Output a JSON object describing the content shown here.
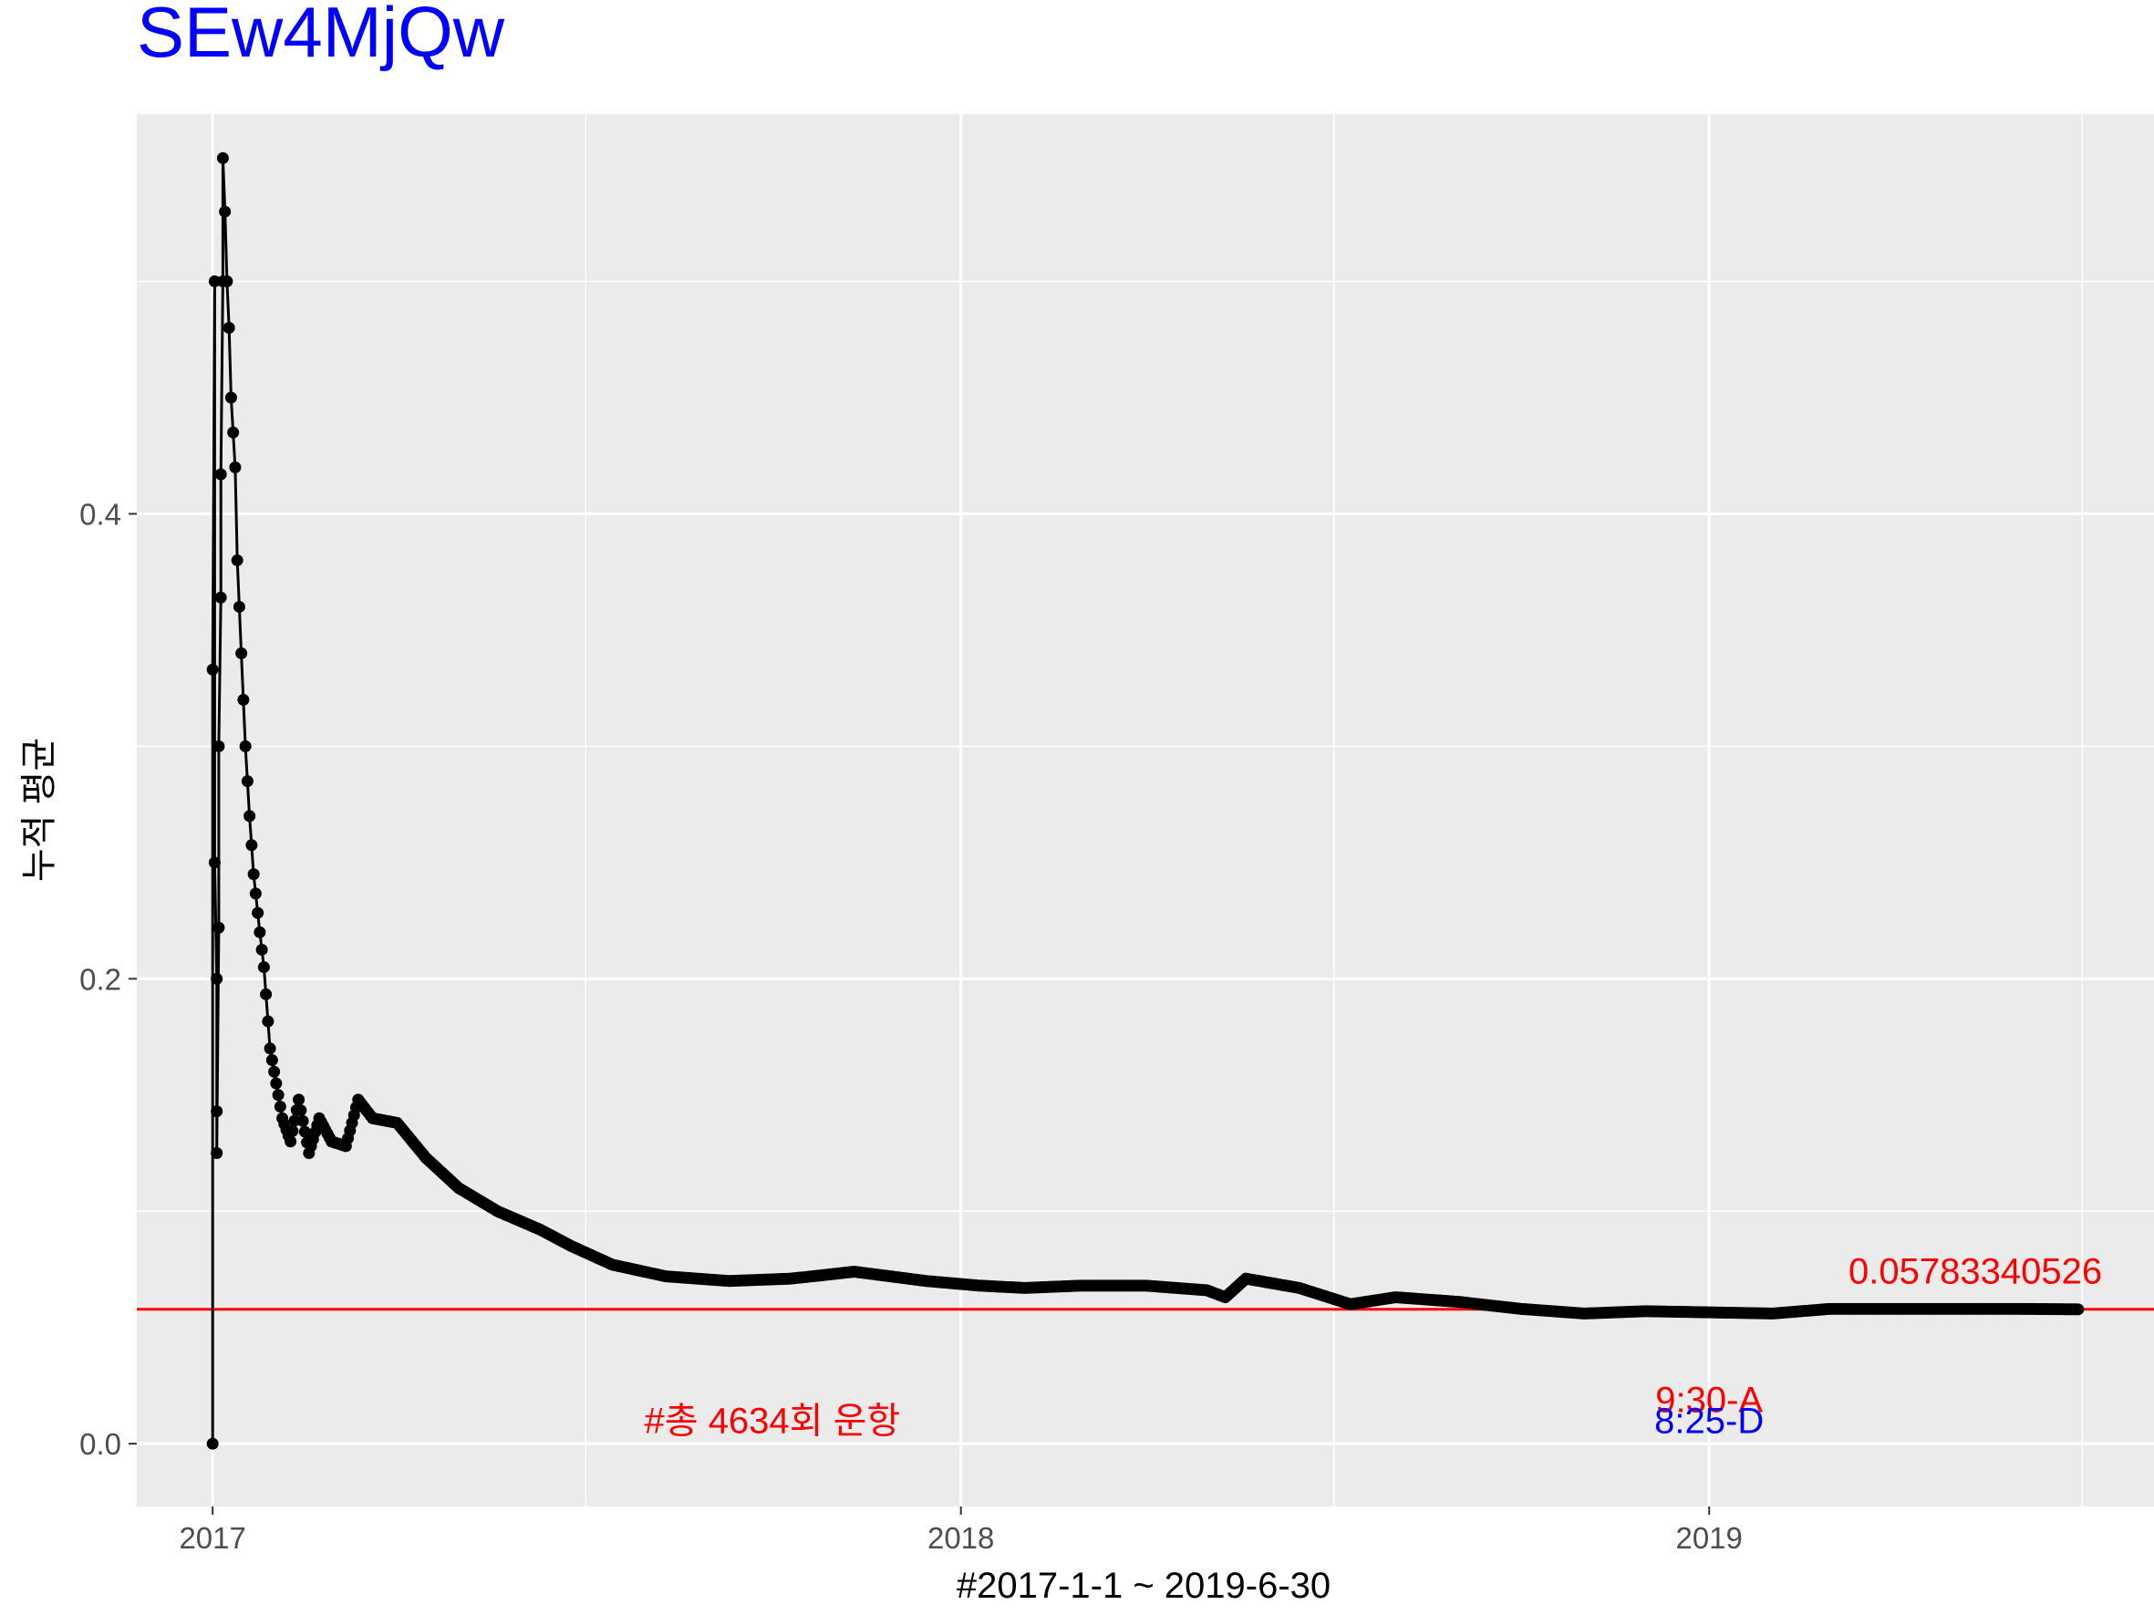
{
  "chart_data": {
    "type": "line",
    "title": "SEw4MjQw",
    "title_color": "#0000ff",
    "xlabel": "#2017-1-1 ~ 2019-6-30",
    "ylabel": "누적 평균",
    "xlim": [
      "2016-11-25",
      "2019-08-06"
    ],
    "ylim": [
      -0.027,
      0.572
    ],
    "x_ticks": [
      {
        "value": "2017-01-01",
        "label": "2017"
      },
      {
        "value": "2018-01-01",
        "label": "2018"
      },
      {
        "value": "2019-01-01",
        "label": "2019"
      }
    ],
    "x_minor_ticks": [
      "2017-07-02",
      "2018-07-02",
      "2019-07-02"
    ],
    "y_ticks": [
      {
        "value": 0.0,
        "label": "0.0"
      },
      {
        "value": 0.2,
        "label": "0.2"
      },
      {
        "value": 0.4,
        "label": "0.4"
      }
    ],
    "y_minor_ticks": [
      0.1,
      0.3,
      0.5
    ],
    "grid": true,
    "panel_color": "#ebebeb",
    "series": [
      {
        "color": "#000000",
        "markers": true,
        "points": [
          [
            "2017-01-01",
            0.0
          ],
          [
            "2017-01-01",
            0.333
          ],
          [
            "2017-01-02",
            0.5
          ],
          [
            "2017-01-02",
            0.25
          ],
          [
            "2017-01-03",
            0.2
          ],
          [
            "2017-01-03",
            0.143
          ],
          [
            "2017-01-03",
            0.125
          ],
          [
            "2017-01-04",
            0.222
          ],
          [
            "2017-01-04",
            0.3
          ],
          [
            "2017-01-05",
            0.364
          ],
          [
            "2017-01-05",
            0.417
          ],
          [
            "2017-01-06",
            0.5
          ],
          [
            "2017-01-06",
            0.553
          ],
          [
            "2017-01-07",
            0.53
          ],
          [
            "2017-01-08",
            0.5
          ],
          [
            "2017-01-09",
            0.48
          ],
          [
            "2017-01-10",
            0.45
          ],
          [
            "2017-01-12",
            0.42
          ],
          [
            "2017-01-13",
            0.38
          ],
          [
            "2017-01-15",
            0.34
          ],
          [
            "2017-01-17",
            0.3
          ],
          [
            "2017-01-19",
            0.27
          ],
          [
            "2017-01-21",
            0.245
          ],
          [
            "2017-01-24",
            0.22
          ],
          [
            "2017-01-26",
            0.205
          ],
          [
            "2017-01-29",
            0.17
          ],
          [
            "2017-02-01",
            0.155
          ],
          [
            "2017-02-04",
            0.14
          ],
          [
            "2017-02-08",
            0.13
          ],
          [
            "2017-02-12",
            0.148
          ],
          [
            "2017-02-17",
            0.125
          ],
          [
            "2017-02-22",
            0.14
          ],
          [
            "2017-02-28",
            0.13
          ],
          [
            "2017-03-07",
            0.128
          ],
          [
            "2017-03-13",
            0.148
          ],
          [
            "2017-03-20",
            0.14
          ],
          [
            "2017-04-01",
            0.138
          ],
          [
            "2017-04-15",
            0.123
          ],
          [
            "2017-05-01",
            0.11
          ],
          [
            "2017-05-20",
            0.1
          ],
          [
            "2017-06-10",
            0.092
          ],
          [
            "2017-06-25",
            0.085
          ],
          [
            "2017-07-15",
            0.077
          ],
          [
            "2017-08-10",
            0.072
          ],
          [
            "2017-09-10",
            0.07
          ],
          [
            "2017-10-10",
            0.071
          ],
          [
            "2017-11-10",
            0.074
          ],
          [
            "2017-12-15",
            0.07
          ],
          [
            "2018-01-10",
            0.068
          ],
          [
            "2018-02-01",
            0.067
          ],
          [
            "2018-03-01",
            0.068
          ],
          [
            "2018-04-01",
            0.068
          ],
          [
            "2018-05-01",
            0.066
          ],
          [
            "2018-05-10",
            0.063
          ],
          [
            "2018-05-20",
            0.071
          ],
          [
            "2018-06-15",
            0.067
          ],
          [
            "2018-07-10",
            0.06
          ],
          [
            "2018-08-01",
            0.063
          ],
          [
            "2018-09-01",
            0.061
          ],
          [
            "2018-10-01",
            0.058
          ],
          [
            "2018-11-01",
            0.056
          ],
          [
            "2018-12-01",
            0.057
          ],
          [
            "2019-01-01",
            0.0565
          ],
          [
            "2019-02-01",
            0.056
          ],
          [
            "2019-03-01",
            0.058
          ],
          [
            "2019-04-01",
            0.058
          ],
          [
            "2019-05-01",
            0.058
          ],
          [
            "2019-06-01",
            0.058
          ],
          [
            "2019-06-30",
            0.0578
          ]
        ]
      }
    ],
    "hline": {
      "y": 0.05783340526,
      "color": "#ff0000",
      "label": "0.05783340526"
    },
    "annotations": [
      {
        "text": "#총 4634회 운항",
        "x": "2017-10-01",
        "y": 0.01,
        "color": "#ff0000"
      },
      {
        "text": "9:30-A",
        "x": "2019-01-01",
        "y": 0.019,
        "color": "#ff0000"
      },
      {
        "text": "8:25-D",
        "x": "2019-01-01",
        "y": 0.01,
        "color": "#0000ff"
      }
    ]
  }
}
